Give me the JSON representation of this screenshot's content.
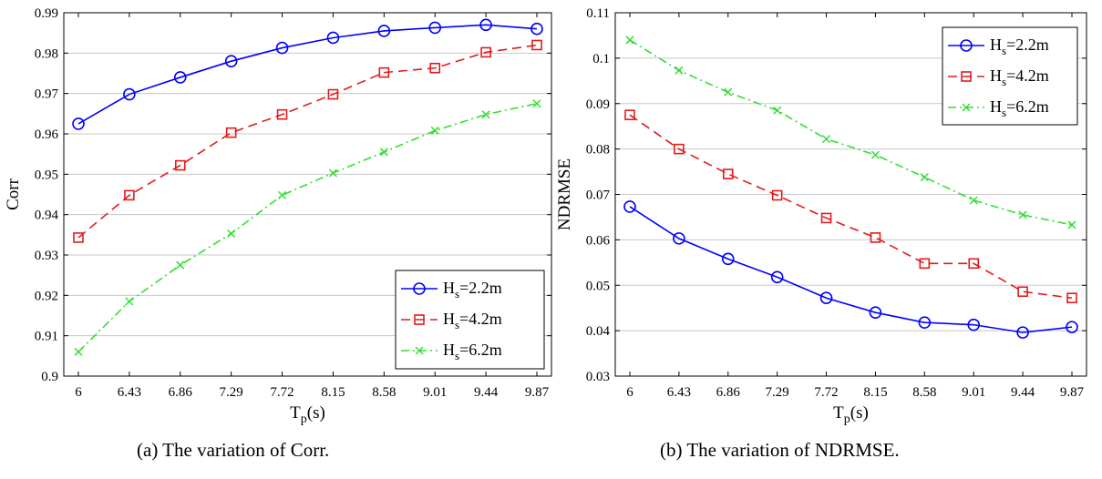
{
  "chart_data": [
    {
      "type": "line",
      "caption": "(a)  The variation of Corr.",
      "ylabel": "Corr",
      "xlabel_main": "T",
      "xlabel_sub": "p",
      "xlabel_unit": "(s)",
      "categories": [
        "6",
        "6.43",
        "6.86",
        "7.29",
        "7.72",
        "8.15",
        "8.58",
        "9.01",
        "9.44",
        "9.87"
      ],
      "ylim": [
        0.9,
        0.99
      ],
      "yticks": [
        "0.9",
        "0.91",
        "0.92",
        "0.93",
        "0.94",
        "0.95",
        "0.96",
        "0.97",
        "0.98",
        "0.99"
      ],
      "grid": "horizontal",
      "legend_position": "bottom-right",
      "series": [
        {
          "name": "H_s=2.2m",
          "legend_main": "H",
          "legend_sub": "s",
          "legend_rest": "=2.2m",
          "color": "#0000ff",
          "marker": "circle",
          "dash": "solid",
          "values": [
            0.9625,
            0.9698,
            0.974,
            0.978,
            0.9813,
            0.9838,
            0.9855,
            0.9863,
            0.987,
            0.986
          ]
        },
        {
          "name": "H_s=4.2m",
          "legend_main": "H",
          "legend_sub": "s",
          "legend_rest": "=4.2m",
          "color": "#e41a1c",
          "marker": "square",
          "dash": "dashed",
          "values": [
            0.9343,
            0.9448,
            0.9522,
            0.9603,
            0.9648,
            0.9698,
            0.9752,
            0.9763,
            0.9802,
            0.982
          ]
        },
        {
          "name": "H_s=6.2m",
          "legend_main": "H",
          "legend_sub": "s",
          "legend_rest": "=6.2m",
          "color": "#33dd33",
          "marker": "x",
          "dash": "dashdot",
          "values": [
            0.906,
            0.9185,
            0.9275,
            0.9353,
            0.9448,
            0.9503,
            0.9555,
            0.9608,
            0.9648,
            0.9675
          ]
        }
      ]
    },
    {
      "type": "line",
      "caption": "(b)  The variation of NDRMSE.",
      "ylabel": "NDRMSE",
      "xlabel_main": "T",
      "xlabel_sub": "p",
      "xlabel_unit": "(s)",
      "categories": [
        "6",
        "6.43",
        "6.86",
        "7.29",
        "7.72",
        "8.15",
        "8.58",
        "9.01",
        "9.44",
        "9.87"
      ],
      "ylim": [
        0.03,
        0.11
      ],
      "yticks": [
        "0.03",
        "0.04",
        "0.05",
        "0.06",
        "0.07",
        "0.08",
        "0.09",
        "0.1",
        "0.11"
      ],
      "grid": "horizontal",
      "legend_position": "top-right",
      "series": [
        {
          "name": "H_s=2.2m",
          "legend_main": "H",
          "legend_sub": "s",
          "legend_rest": "=2.2m",
          "color": "#0000ff",
          "marker": "circle",
          "dash": "solid",
          "values": [
            0.0673,
            0.0603,
            0.0558,
            0.0518,
            0.0472,
            0.044,
            0.0418,
            0.0413,
            0.0396,
            0.0408
          ]
        },
        {
          "name": "H_s=4.2m",
          "legend_main": "H",
          "legend_sub": "s",
          "legend_rest": "=4.2m",
          "color": "#e41a1c",
          "marker": "square",
          "dash": "dashed",
          "values": [
            0.0875,
            0.08,
            0.0745,
            0.0698,
            0.0648,
            0.0605,
            0.0548,
            0.0548,
            0.0486,
            0.0472
          ]
        },
        {
          "name": "H_s=6.2m",
          "legend_main": "H",
          "legend_sub": "s",
          "legend_rest": "=6.2m",
          "color": "#33dd33",
          "marker": "x",
          "dash": "dashdot",
          "values": [
            0.104,
            0.0973,
            0.0925,
            0.0885,
            0.0822,
            0.0787,
            0.0738,
            0.0687,
            0.0655,
            0.0633
          ]
        }
      ]
    }
  ]
}
